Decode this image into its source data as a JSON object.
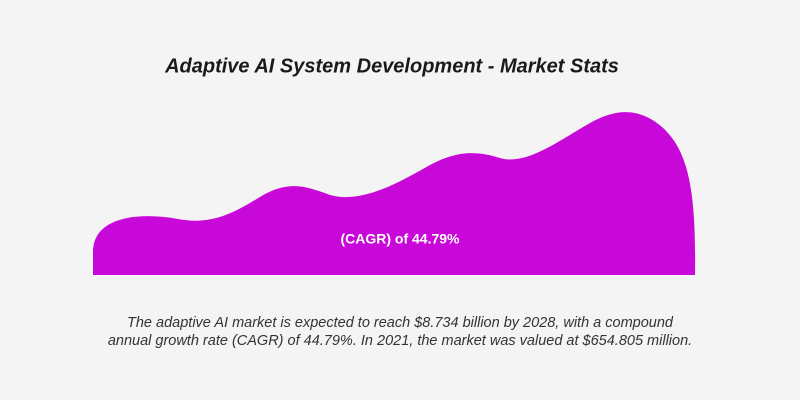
{
  "header": {
    "title": "Adaptive AI System Development - Market Stats"
  },
  "shape": {
    "label": "(CAGR) of 44.79%"
  },
  "description": {
    "lines": [
      "The adaptive AI market is expected to reach $8.734 billion by 2028, with a compound",
      "annual growth rate (CAGR) of 44.79%. In 2021, the market was valued at $654.805 million."
    ]
  }
}
